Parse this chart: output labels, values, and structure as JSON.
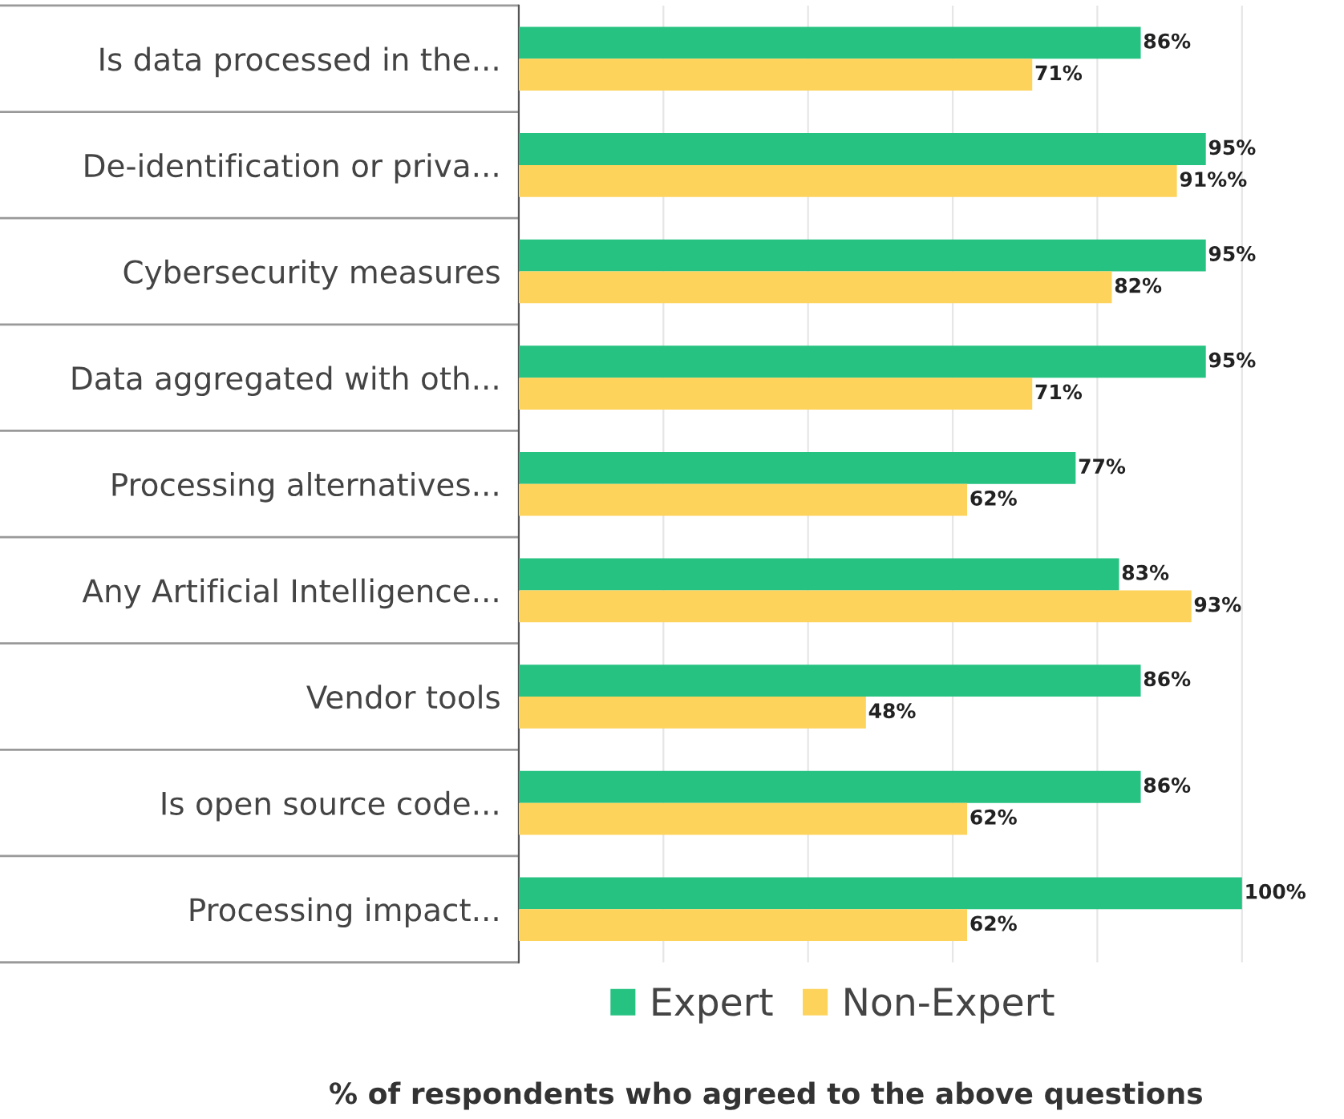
{
  "chart_data": {
    "type": "bar",
    "orientation": "horizontal",
    "xlabel": "% of respondents who agreed to the above questions",
    "categories": [
      "Is data processed in the...",
      "De-identification or priva...",
      "Cybersecurity measures",
      "Data aggregated with oth...",
      "Processing alternatives...",
      "Any Artificial Intelligence...",
      "Vendor tools",
      "Is open source code...",
      "Processing impact..."
    ],
    "series": [
      {
        "name": "Expert",
        "color": "#26c281",
        "values": [
          86,
          95,
          95,
          95,
          77,
          83,
          86,
          86,
          100
        ],
        "value_labels": [
          "86%",
          "95%",
          "95%",
          "95%",
          "77%",
          "83%",
          "86%",
          "86%",
          "100%"
        ]
      },
      {
        "name": "Non-Expert",
        "color": "#fdd35b",
        "values": [
          71,
          91,
          82,
          71,
          62,
          93,
          48,
          62,
          62
        ],
        "value_labels": [
          "71%",
          "91%%",
          "82%",
          "71%",
          "62%",
          "93%",
          "48%",
          "62%",
          "62%"
        ]
      }
    ],
    "xticks": [
      {
        "value": 0,
        "label": null
      },
      {
        "value": 20,
        "label": null
      },
      {
        "value": 40,
        "label": null
      },
      {
        "value": 60,
        "label": null
      },
      {
        "value": 80,
        "label": null
      },
      {
        "value": 100,
        "label": null
      }
    ],
    "grid": "x",
    "legend": "bottom"
  }
}
